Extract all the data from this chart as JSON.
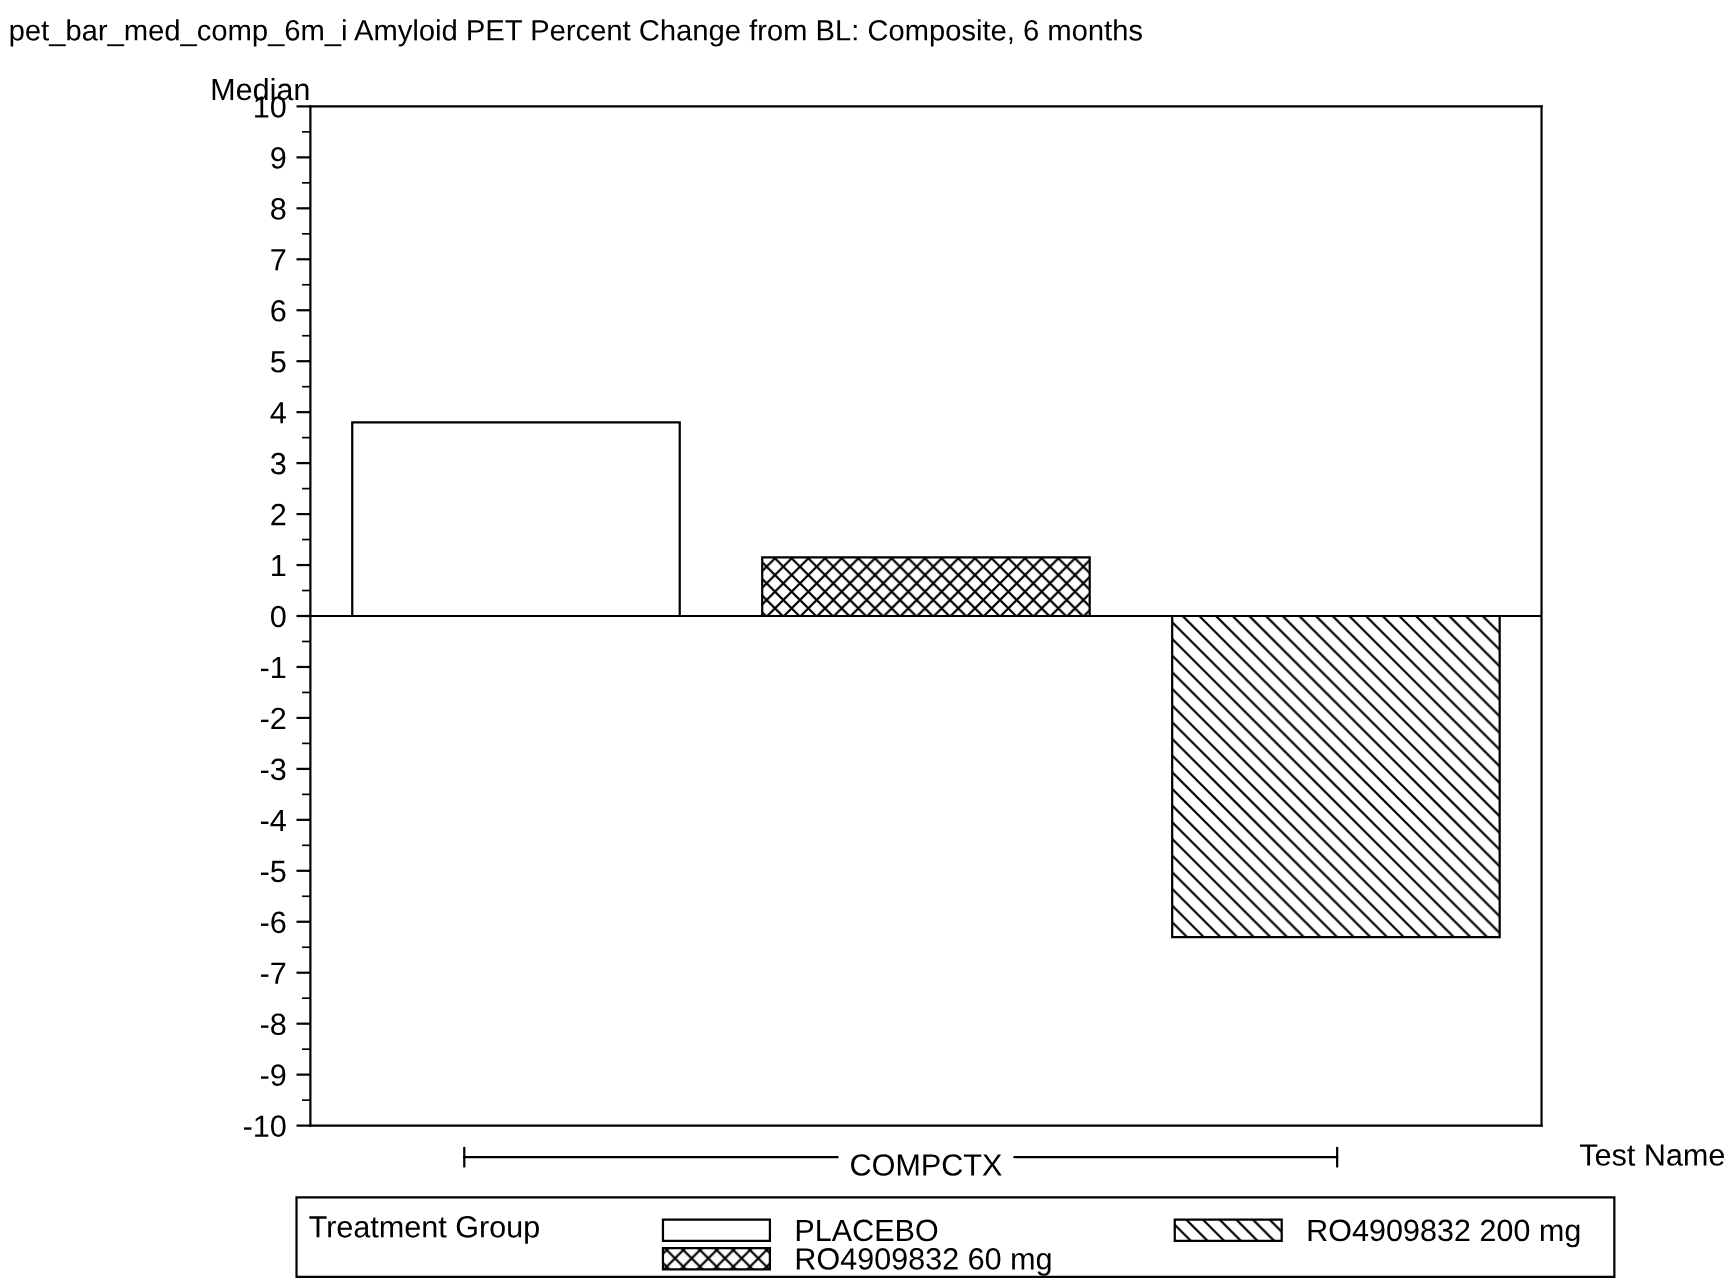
{
  "chart_data": {
    "type": "bar",
    "title": "pet_bar_med_comp_6m_i Amyloid PET Percent Change from BL: Composite, 6 months",
    "ylabel": "Median",
    "xlabel": "Test Name",
    "legend_title": "Treatment Group",
    "legend": "bottom",
    "categories": [
      "COMPCTX"
    ],
    "series": [
      {
        "name": "PLACEBO",
        "color": "#ffffff",
        "values": [
          3.8
        ]
      },
      {
        "name": "RO4909832 60 mg",
        "color": "#000000",
        "values": [
          1.15
        ]
      },
      {
        "name": "RO4909832 200 mg",
        "color": "#000000",
        "values": [
          -6.3
        ]
      }
    ],
    "ylim": [
      -10,
      10
    ],
    "yticks": [
      -10,
      -9,
      -8,
      -7,
      -6,
      -5,
      -4,
      -3,
      -2,
      -1,
      0,
      1,
      2,
      3,
      4,
      5,
      6,
      7,
      8,
      9,
      10
    ],
    "grid": false,
    "ref_lines": [
      {
        "axis": "y",
        "value": 0,
        "color": "#000000"
      }
    ]
  }
}
